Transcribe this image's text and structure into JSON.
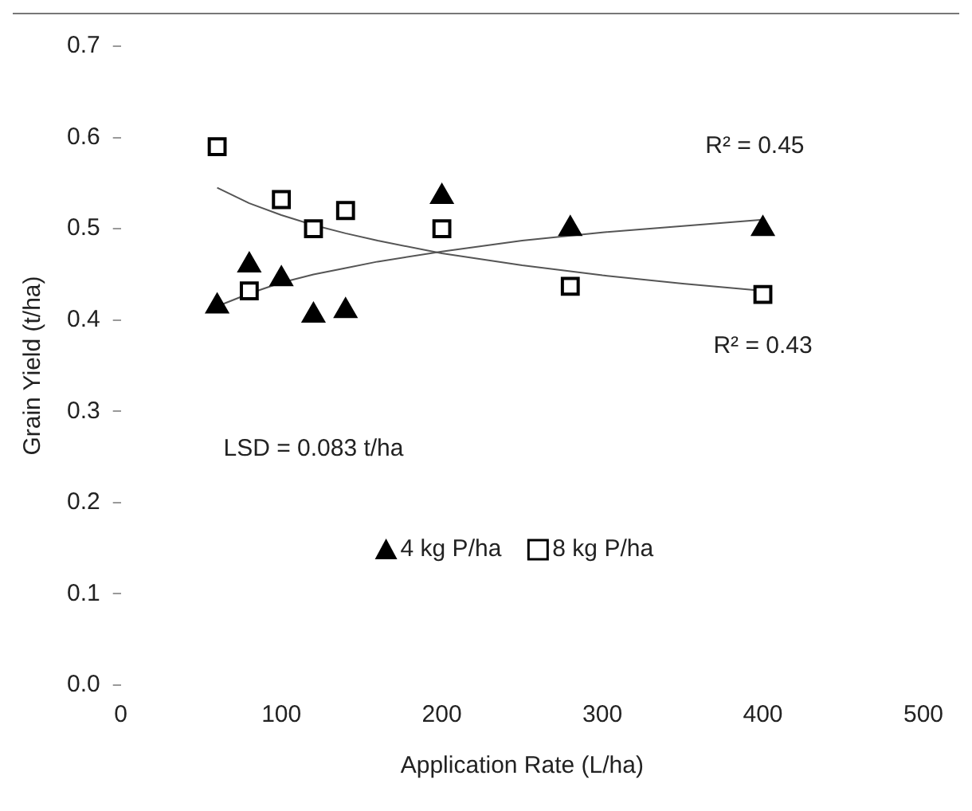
{
  "chart_data": {
    "type": "scatter",
    "xlabel": "Application Rate (L/ha)",
    "ylabel": "Grain Yield (t/ha)",
    "x": [
      60,
      80,
      100,
      120,
      140,
      200,
      280,
      400
    ],
    "series": [
      {
        "name": "4 kg P/ha",
        "color": "#000000",
        "marker": "triangle",
        "values": [
          0.415,
          0.46,
          0.445,
          0.405,
          0.41,
          0.535,
          0.5,
          0.5
        ]
      },
      {
        "name": "8 kg P/ha",
        "color": "#000000",
        "marker": "square",
        "values": [
          0.59,
          0.432,
          0.532,
          0.5,
          0.52,
          0.5,
          0.437,
          0.428
        ]
      },
      {
        "type": "line",
        "color": "#555555",
        "x": [
          60,
          80,
          100,
          120,
          140,
          160,
          200,
          250,
          300,
          350,
          400
        ],
        "values": [
          0.415,
          0.429,
          0.441,
          0.45,
          0.457,
          0.464,
          0.475,
          0.487,
          0.496,
          0.503,
          0.51
        ]
      },
      {
        "type": "line",
        "color": "#555555",
        "x": [
          60,
          80,
          100,
          120,
          140,
          160,
          200,
          250,
          300,
          350,
          400
        ],
        "values": [
          0.545,
          0.528,
          0.515,
          0.504,
          0.495,
          0.487,
          0.473,
          0.46,
          0.449,
          0.44,
          0.432
        ]
      }
    ],
    "xlim": [
      0,
      500
    ],
    "xticks": [
      0,
      100,
      200,
      300,
      400,
      500
    ],
    "ylim": [
      0,
      0.7
    ],
    "yticks": [
      {
        "value": 0,
        "label": "0.0"
      },
      0.1,
      0.2,
      0.3,
      0.4,
      0.5,
      0.6,
      0.7
    ],
    "grid": false,
    "legend": "bottom",
    "annotations": [
      "R² = 0.45",
      "R² = 0.43",
      "LSD = 0.083 t/ha"
    ]
  }
}
